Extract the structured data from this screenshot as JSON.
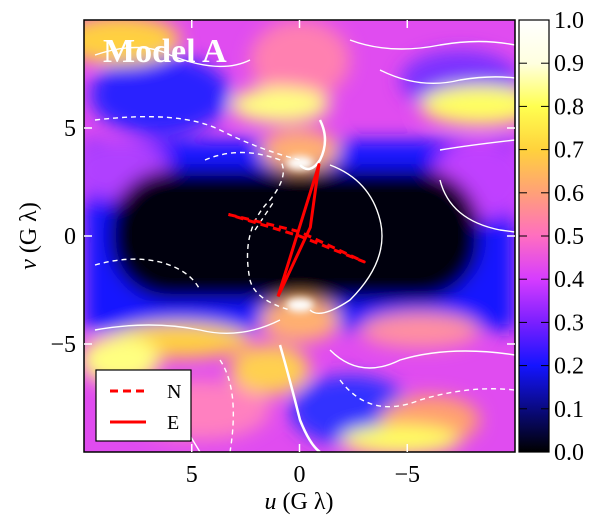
{
  "chart_data": {
    "type": "heatmap",
    "title": "Model A",
    "xlabel_var": "u",
    "xlabel_unit": " (G λ)",
    "ylabel_var": "v",
    "ylabel_unit": " (G λ)",
    "xlim": [
      10,
      -10
    ],
    "ylim": [
      -10,
      10
    ],
    "xticks": [
      {
        "v": 5,
        "label": "5"
      },
      {
        "v": 0,
        "label": "0"
      },
      {
        "v": -5,
        "label": "−5"
      }
    ],
    "yticks": [
      {
        "v": 5,
        "label": "5"
      },
      {
        "v": 0,
        "label": "0"
      },
      {
        "v": -5,
        "label": "−5"
      }
    ],
    "colormap": [
      "#000000",
      "#0a0a80",
      "#1414ff",
      "#7a1fff",
      "#d63cff",
      "#ff6ec0",
      "#ffa078",
      "#ffd23c",
      "#ffff50",
      "#ffffe0",
      "#ffffff"
    ],
    "colorbar": {
      "ticks": [
        "0.0",
        "0.1",
        "0.2",
        "0.3",
        "0.4",
        "0.5",
        "0.6",
        "0.7",
        "0.8",
        "0.9",
        "1.0"
      ],
      "range": [
        0,
        1
      ]
    },
    "legend": {
      "placement": "lower-left",
      "entries": [
        {
          "label": "N",
          "style": "dashed",
          "color": "#ff0000"
        },
        {
          "label": "E",
          "style": "solid",
          "color": "#ff0000"
        }
      ]
    },
    "series": [
      {
        "name": "N",
        "style": "dashed",
        "color": "#ff0000",
        "points": [
          [
            3.3,
            1.0
          ],
          [
            0.0,
            0.2
          ],
          [
            -3.0,
            -1.2
          ],
          [
            0.0,
            0.0
          ],
          [
            3.3,
            1.0
          ]
        ]
      },
      {
        "name": "E",
        "style": "solid",
        "color": "#ff0000",
        "points": [
          [
            1.0,
            -2.8
          ],
          [
            -0.9,
            3.3
          ],
          [
            -0.5,
            0.4
          ],
          [
            1.0,
            -2.8
          ]
        ]
      }
    ]
  }
}
